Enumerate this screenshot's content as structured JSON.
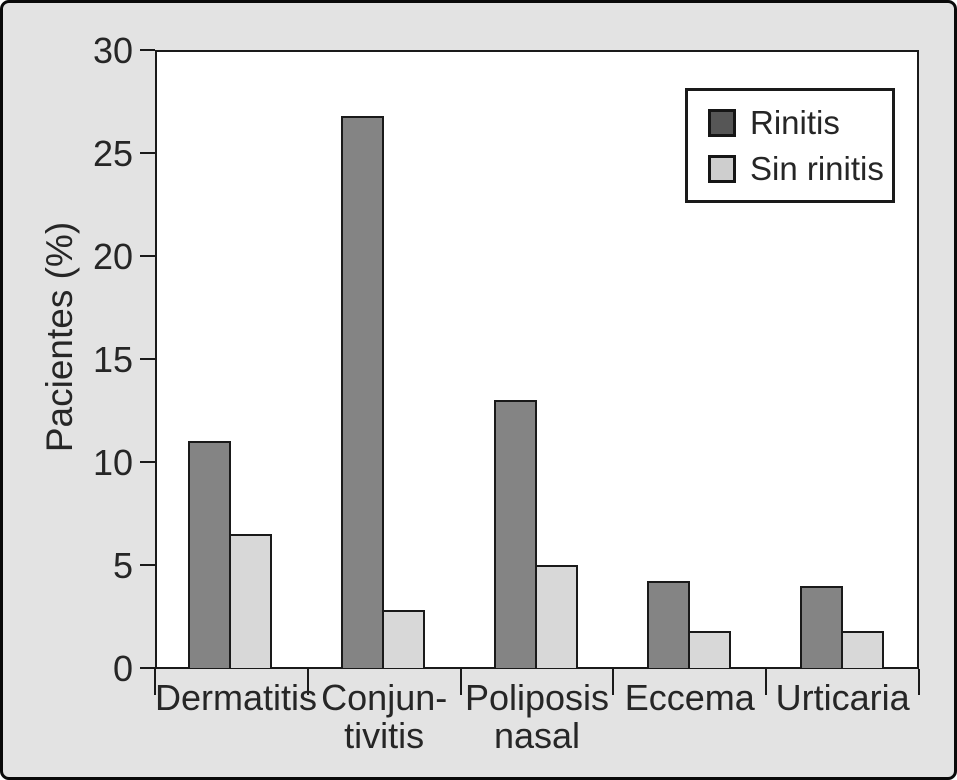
{
  "colors": {
    "background": "#e3e3e3",
    "frame_border": "#0a0a0a",
    "plot_background": "#ffffff",
    "axis": "#1a1a1a",
    "text": "#262626",
    "bar_rinitis": "#848484",
    "bar_sin_rinitis": "#d8d8d8",
    "bar_border": "#1a1a1a",
    "legend_swatch_rinitis": "#565656",
    "legend_swatch_sin_rinitis": "#cecece"
  },
  "chart_data": {
    "type": "bar",
    "title": "",
    "xlabel": "",
    "ylabel": "Pacientes (%)",
    "ylim": [
      0,
      30
    ],
    "yticks": [
      0,
      5,
      10,
      15,
      20,
      25,
      30
    ],
    "grid": false,
    "legend_position": "top-right",
    "categories": [
      "Dermatitis",
      "Conjun-\ntivitis",
      "Poliposis\nnasal",
      "Eccema",
      "Urticaria"
    ],
    "series": [
      {
        "name": "Rinitis",
        "values": [
          11,
          26.8,
          13,
          4.2,
          4
        ]
      },
      {
        "name": "Sin rinitis",
        "values": [
          6.5,
          2.8,
          5,
          1.8,
          1.8
        ]
      }
    ]
  }
}
